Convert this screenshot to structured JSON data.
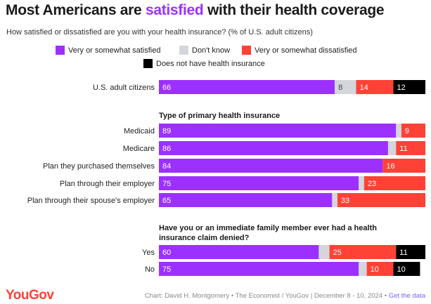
{
  "header": {
    "title_before": "Most Americans are ",
    "title_highlight": "satisfied",
    "title_after": " with their health coverage",
    "subtitle": "How satisfied or dissatisfied are you with your health insurance? (% of U.S. adult citizens)"
  },
  "legend": [
    {
      "label": "Very or somewhat satisfied",
      "color": "#9b30ff"
    },
    {
      "label": "Don't know",
      "color": "#d4d6dc"
    },
    {
      "label": "Very or somewhat dissatisfied",
      "color": "#ff4136"
    },
    {
      "label": "Does not have health insurance",
      "color": "#000000"
    }
  ],
  "sections": {
    "type": "Type of primary health insurance",
    "denied": "Have you or an immediate family member ever had a health insurance claim denied?"
  },
  "chart_data": {
    "type": "bar",
    "orientation": "horizontal",
    "stacked": true,
    "series": [
      {
        "name": "Very or somewhat satisfied",
        "color": "#9b30ff",
        "label_color": "#ffffff"
      },
      {
        "name": "Don't know",
        "color": "#d4d6dc",
        "label_color": "#444444"
      },
      {
        "name": "Very or somewhat dissatisfied",
        "color": "#ff4136",
        "label_color": "#ffffff"
      },
      {
        "name": "Does not have health insurance",
        "color": "#000000",
        "label_color": "#ffffff"
      }
    ],
    "groups": [
      {
        "title": "",
        "rows": [
          {
            "label": "U.S. adult citizens",
            "values": [
              66,
              8,
              14,
              12
            ],
            "labels": [
              "66",
              "8",
              "14",
              "12"
            ]
          }
        ]
      },
      {
        "title": "Type of primary health insurance",
        "rows": [
          {
            "label": "Medicaid",
            "values": [
              89,
              2,
              9,
              0
            ],
            "labels": [
              "89",
              "",
              "9",
              ""
            ]
          },
          {
            "label": "Medicare",
            "values": [
              86,
              3,
              11,
              0
            ],
            "labels": [
              "86",
              "",
              "11",
              ""
            ]
          },
          {
            "label": "Plan they purchased themselves",
            "values": [
              84,
              0,
              16,
              0
            ],
            "labels": [
              "84",
              "",
              "16",
              ""
            ]
          },
          {
            "label": "Plan through their employer",
            "values": [
              75,
              2,
              23,
              0
            ],
            "labels": [
              "75",
              "",
              "23",
              ""
            ]
          },
          {
            "label": "Plan through their spouse's employer",
            "values": [
              65,
              2,
              33,
              0
            ],
            "labels": [
              "65",
              "",
              "33",
              ""
            ]
          }
        ]
      },
      {
        "title": "Have you or an immediate family member ever had a health insurance claim denied?",
        "rows": [
          {
            "label": "Yes",
            "values": [
              60,
              4,
              25,
              11
            ],
            "labels": [
              "60",
              "",
              "25",
              "11"
            ]
          },
          {
            "label": "No",
            "values": [
              75,
              3,
              10,
              10
            ],
            "labels": [
              "75",
              "",
              "10",
              "10"
            ]
          }
        ]
      }
    ],
    "xlim": [
      0,
      100
    ]
  },
  "footer": {
    "logo": "YouGov",
    "credit": "Chart: David H. Montgomery • The Economist / YouGov | December 8 - 10, 2024 • ",
    "link": "Get the data"
  }
}
